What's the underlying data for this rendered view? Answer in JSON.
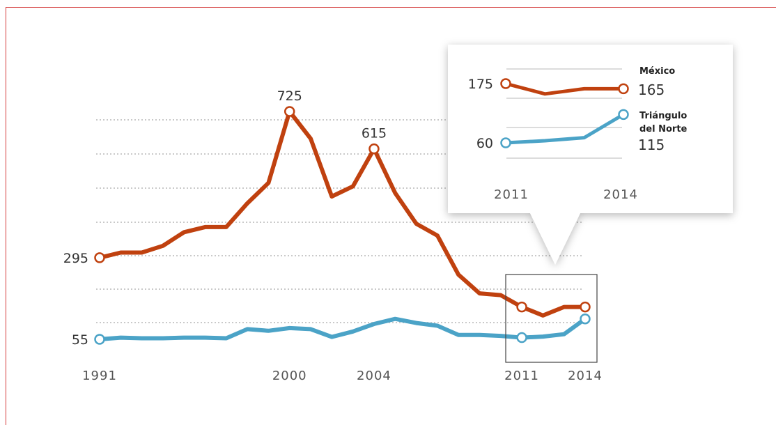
{
  "chart_data": [
    {
      "type": "line",
      "title": "",
      "xlabel": "",
      "ylabel": "",
      "x": [
        1991,
        1992,
        1993,
        1994,
        1995,
        1996,
        1997,
        1998,
        1999,
        2000,
        2001,
        2002,
        2003,
        2004,
        2005,
        2006,
        2007,
        2008,
        2009,
        2010,
        2011,
        2012,
        2013,
        2014
      ],
      "series": [
        {
          "name": "México",
          "color": "#c0410f",
          "values": [
            295,
            310,
            310,
            330,
            370,
            385,
            385,
            455,
            515,
            725,
            645,
            475,
            505,
            615,
            485,
            395,
            360,
            245,
            190,
            185,
            150,
            125,
            150,
            150
          ]
        },
        {
          "name": "Triángulo del Norte",
          "color": "#4ba3c7",
          "values": [
            55,
            60,
            58,
            58,
            60,
            60,
            58,
            85,
            80,
            88,
            85,
            62,
            78,
            100,
            115,
            103,
            95,
            68,
            68,
            65,
            60,
            63,
            70,
            115
          ]
        }
      ],
      "xticks": [
        "1991",
        "2000",
        "2004",
        "2011",
        "2014"
      ],
      "point_labels": [
        {
          "x": 1991,
          "series": 0,
          "text": "295"
        },
        {
          "x": 2000,
          "series": 0,
          "text": "725"
        },
        {
          "x": 2004,
          "series": 0,
          "text": "615"
        },
        {
          "x": 1991,
          "series": 1,
          "text": "55"
        }
      ],
      "grid": true,
      "highlight_range": [
        2011,
        2014
      ]
    },
    {
      "type": "line",
      "title": "",
      "x": [
        2011,
        2012,
        2013,
        2014
      ],
      "series": [
        {
          "name": "México",
          "color": "#c0410f",
          "values": [
            175,
            155,
            165,
            165
          ]
        },
        {
          "name": "Triángulo del Norte",
          "color": "#4ba3c7",
          "values": [
            60,
            64,
            70,
            115
          ]
        }
      ],
      "xticks": [
        "2011",
        "2014"
      ],
      "start_labels": [
        "175",
        "60"
      ],
      "end_labels": [
        "165",
        "115"
      ],
      "legend": [
        "México",
        "Triángulo",
        "del Norte"
      ],
      "grid": true
    }
  ]
}
